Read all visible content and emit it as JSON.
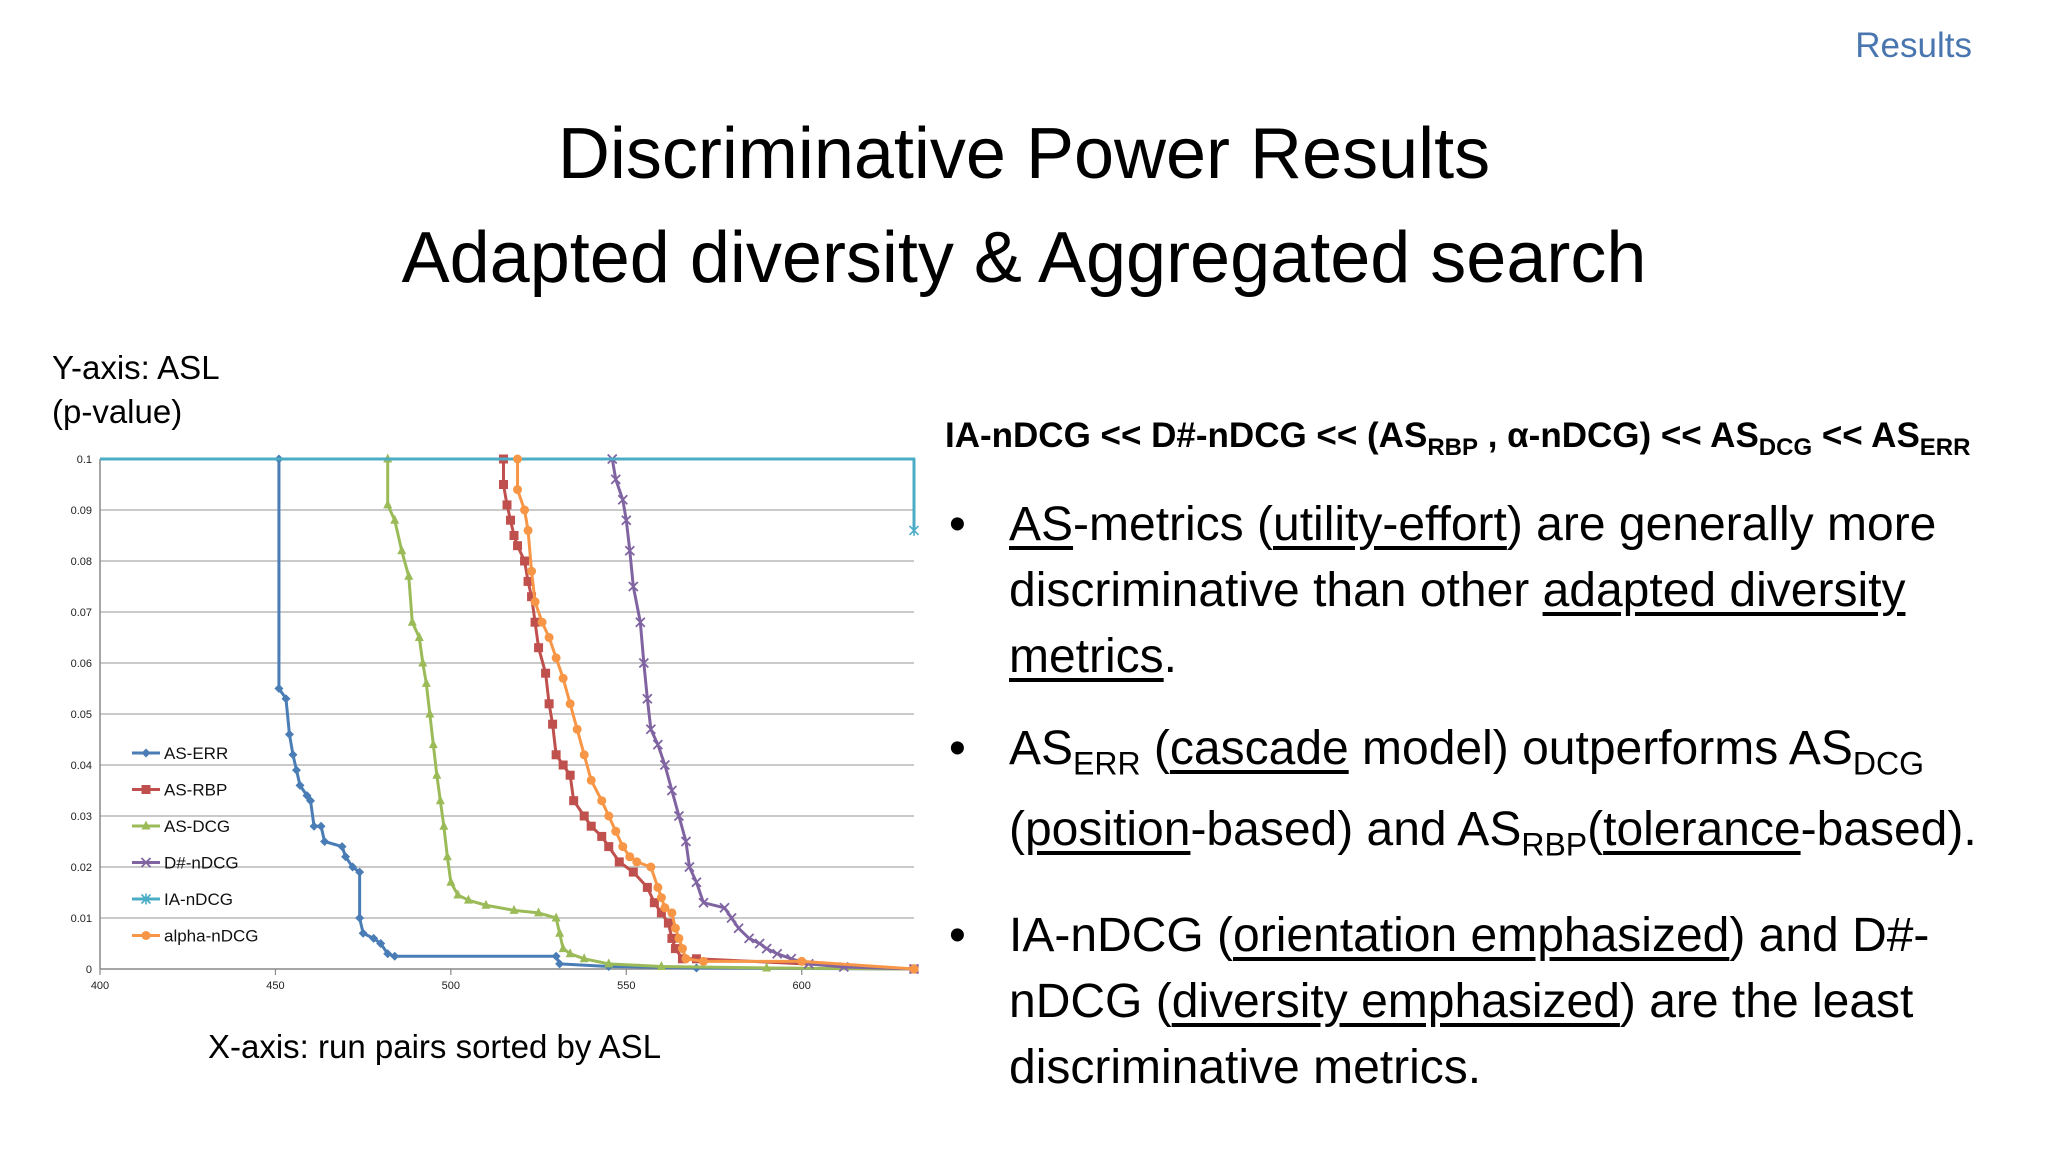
{
  "section_tag": "Results",
  "title_line1": "Discriminative Power Results",
  "title_line2": "Adapted diversity & Aggregated search",
  "y_axis_label_line1": "Y-axis: ASL",
  "y_axis_label_line2": "(p-value)",
  "x_axis_label": "X-axis: run pairs sorted by ASL",
  "ranking": {
    "m1": "IA-nDCG",
    "sep": " << ",
    "m2": "D#-nDCG",
    "g_open": "(AS",
    "g_sub": "RBP",
    "g_rest": " , α-nDCG)",
    "m4": "AS",
    "m4_sub": "DCG",
    "m5": "AS",
    "m5_sub": "ERR"
  },
  "bullets": [
    {
      "a": "AS",
      "b": "-metrics (",
      "c": "utility-effort",
      "d": ") are generally more discriminative than other ",
      "e": "adapted diversity metrics",
      "f": "."
    },
    {
      "a": "AS",
      "a_sub": "ERR",
      "b": " (",
      "c": "cascade",
      "d": " model) outperforms AS",
      "d_sub": "DCG",
      "e": " (",
      "f": "position",
      "g": "-based) and AS",
      "g_sub": "RBP",
      "h": "(",
      "i": "tolerance",
      "j": "-based)."
    },
    {
      "a": "IA-nDCG (",
      "b": "orientation emphasized",
      "c": ") and D#-nDCG (",
      "d": "diversity emphasized",
      "e": ") are the least discriminative metrics."
    }
  ],
  "chart_data": {
    "type": "line",
    "xlim": [
      400,
      632
    ],
    "ylim": [
      0,
      0.1
    ],
    "x_ticks": [
      400,
      450,
      500,
      550,
      600
    ],
    "y_ticks": [
      0,
      0.01,
      0.02,
      0.03,
      0.04,
      0.05,
      0.06,
      0.07,
      0.08,
      0.09,
      0.1
    ],
    "grid": "horizontal",
    "legend_position": "left-bottom",
    "series": [
      {
        "name": "AS-ERR",
        "color": "#4a7db5",
        "marker": "diamond",
        "points": [
          [
            451,
            0.1
          ],
          [
            451,
            0.055
          ],
          [
            453,
            0.053
          ],
          [
            454,
            0.046
          ],
          [
            455,
            0.042
          ],
          [
            456,
            0.039
          ],
          [
            457,
            0.036
          ],
          [
            459,
            0.034
          ],
          [
            460,
            0.033
          ],
          [
            461,
            0.028
          ],
          [
            463,
            0.028
          ],
          [
            464,
            0.025
          ],
          [
            469,
            0.024
          ],
          [
            470,
            0.022
          ],
          [
            472,
            0.02
          ],
          [
            474,
            0.019
          ],
          [
            474,
            0.01
          ],
          [
            475,
            0.007
          ],
          [
            478,
            0.006
          ],
          [
            480,
            0.005
          ],
          [
            482,
            0.003
          ],
          [
            484,
            0.0025
          ],
          [
            530,
            0.0025
          ],
          [
            531,
            0.001
          ],
          [
            545,
            0.0005
          ],
          [
            570,
            0.0002
          ],
          [
            632,
            0
          ]
        ]
      },
      {
        "name": "AS-RBP",
        "color": "#c0504d",
        "marker": "square",
        "points": [
          [
            515,
            0.1
          ],
          [
            515,
            0.095
          ],
          [
            516,
            0.091
          ],
          [
            517,
            0.088
          ],
          [
            518,
            0.085
          ],
          [
            519,
            0.083
          ],
          [
            521,
            0.08
          ],
          [
            522,
            0.076
          ],
          [
            523,
            0.073
          ],
          [
            524,
            0.068
          ],
          [
            525,
            0.063
          ],
          [
            527,
            0.058
          ],
          [
            528,
            0.052
          ],
          [
            529,
            0.048
          ],
          [
            530,
            0.042
          ],
          [
            532,
            0.04
          ],
          [
            534,
            0.038
          ],
          [
            535,
            0.033
          ],
          [
            538,
            0.03
          ],
          [
            540,
            0.028
          ],
          [
            543,
            0.026
          ],
          [
            545,
            0.024
          ],
          [
            548,
            0.021
          ],
          [
            552,
            0.019
          ],
          [
            556,
            0.016
          ],
          [
            558,
            0.013
          ],
          [
            560,
            0.011
          ],
          [
            562,
            0.009
          ],
          [
            563,
            0.006
          ],
          [
            564,
            0.004
          ],
          [
            566,
            0.002
          ],
          [
            570,
            0.002
          ],
          [
            632,
            0
          ]
        ]
      },
      {
        "name": "AS-DCG",
        "color": "#9bbb59",
        "marker": "triangle",
        "points": [
          [
            482,
            0.1
          ],
          [
            482,
            0.091
          ],
          [
            484,
            0.088
          ],
          [
            486,
            0.082
          ],
          [
            488,
            0.077
          ],
          [
            489,
            0.068
          ],
          [
            491,
            0.065
          ],
          [
            492,
            0.06
          ],
          [
            493,
            0.056
          ],
          [
            494,
            0.05
          ],
          [
            495,
            0.044
          ],
          [
            496,
            0.038
          ],
          [
            497,
            0.033
          ],
          [
            498,
            0.028
          ],
          [
            499,
            0.022
          ],
          [
            500,
            0.017
          ],
          [
            502,
            0.0145
          ],
          [
            505,
            0.0135
          ],
          [
            510,
            0.0125
          ],
          [
            518,
            0.0115
          ],
          [
            525,
            0.011
          ],
          [
            530,
            0.01
          ],
          [
            531,
            0.007
          ],
          [
            532,
            0.004
          ],
          [
            534,
            0.003
          ],
          [
            538,
            0.002
          ],
          [
            545,
            0.001
          ],
          [
            560,
            0.0005
          ],
          [
            590,
            0.0002
          ],
          [
            632,
            0
          ]
        ]
      },
      {
        "name": "D#-nDCG",
        "color": "#8064a2",
        "marker": "x",
        "points": [
          [
            546,
            0.1
          ],
          [
            547,
            0.096
          ],
          [
            549,
            0.092
          ],
          [
            550,
            0.088
          ],
          [
            551,
            0.082
          ],
          [
            552,
            0.075
          ],
          [
            554,
            0.068
          ],
          [
            555,
            0.06
          ],
          [
            556,
            0.053
          ],
          [
            557,
            0.047
          ],
          [
            559,
            0.044
          ],
          [
            561,
            0.04
          ],
          [
            563,
            0.035
          ],
          [
            565,
            0.03
          ],
          [
            567,
            0.025
          ],
          [
            568,
            0.02
          ],
          [
            570,
            0.017
          ],
          [
            572,
            0.013
          ],
          [
            578,
            0.012
          ],
          [
            580,
            0.01
          ],
          [
            582,
            0.008
          ],
          [
            585,
            0.006
          ],
          [
            588,
            0.005
          ],
          [
            590,
            0.004
          ],
          [
            593,
            0.003
          ],
          [
            597,
            0.002
          ],
          [
            602,
            0.001
          ],
          [
            612,
            0.0004
          ],
          [
            632,
            0
          ]
        ]
      },
      {
        "name": "IA-nDCG",
        "color": "#4bacc6",
        "marker": "star",
        "points": [
          [
            400,
            0.1
          ],
          [
            632,
            0.1
          ],
          [
            632,
            0.086
          ]
        ]
      },
      {
        "name": "alpha-nDCG",
        "color": "#f79646",
        "marker": "circle",
        "points": [
          [
            519,
            0.1
          ],
          [
            519,
            0.094
          ],
          [
            521,
            0.09
          ],
          [
            522,
            0.086
          ],
          [
            523,
            0.078
          ],
          [
            524,
            0.072
          ],
          [
            526,
            0.068
          ],
          [
            528,
            0.065
          ],
          [
            530,
            0.061
          ],
          [
            532,
            0.057
          ],
          [
            534,
            0.052
          ],
          [
            536,
            0.047
          ],
          [
            538,
            0.042
          ],
          [
            540,
            0.037
          ],
          [
            543,
            0.033
          ],
          [
            545,
            0.03
          ],
          [
            547,
            0.027
          ],
          [
            549,
            0.024
          ],
          [
            551,
            0.022
          ],
          [
            553,
            0.021
          ],
          [
            557,
            0.02
          ],
          [
            559,
            0.016
          ],
          [
            560,
            0.014
          ],
          [
            561,
            0.012
          ],
          [
            563,
            0.011
          ],
          [
            564,
            0.008
          ],
          [
            565,
            0.006
          ],
          [
            566,
            0.004
          ],
          [
            567,
            0.002
          ],
          [
            572,
            0.0015
          ],
          [
            600,
            0.0015
          ],
          [
            632,
            0
          ]
        ]
      }
    ]
  }
}
